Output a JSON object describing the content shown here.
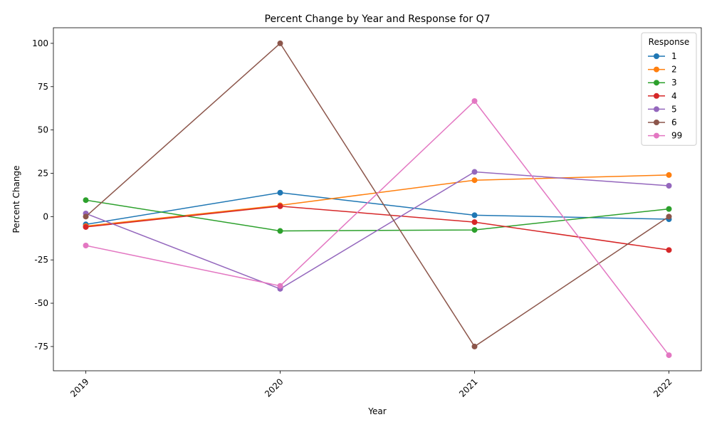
{
  "chart_data": {
    "type": "line",
    "title": "Percent Change by Year and Response for Q7",
    "xlabel": "Year",
    "ylabel": "Percent Change",
    "x": [
      "2019",
      "2020",
      "2021",
      "2022"
    ],
    "ylim": [
      -89,
      109
    ],
    "yticks": [
      -75,
      -50,
      -25,
      0,
      25,
      50,
      75,
      100
    ],
    "grid": false,
    "legend": {
      "title": "Response",
      "placement": "top-right"
    },
    "series": [
      {
        "name": "1",
        "color": "#1f77b4",
        "values": [
          -4.5,
          13.8,
          0.8,
          -1.5
        ]
      },
      {
        "name": "2",
        "color": "#ff7f0e",
        "values": [
          -5.5,
          6.5,
          21.0,
          24.0
        ]
      },
      {
        "name": "3",
        "color": "#2ca02c",
        "values": [
          9.5,
          -8.3,
          -7.7,
          4.4
        ]
      },
      {
        "name": "4",
        "color": "#d62728",
        "values": [
          -6.0,
          6.0,
          -3.2,
          -19.3
        ]
      },
      {
        "name": "5",
        "color": "#9467bd",
        "values": [
          1.8,
          -41.7,
          25.8,
          17.8
        ]
      },
      {
        "name": "6",
        "color": "#8c564b",
        "values": [
          0.0,
          100.0,
          -75.0,
          0.0
        ]
      },
      {
        "name": "99",
        "color": "#e377c2",
        "values": [
          -16.7,
          -40.0,
          66.7,
          -80.0
        ]
      }
    ]
  }
}
